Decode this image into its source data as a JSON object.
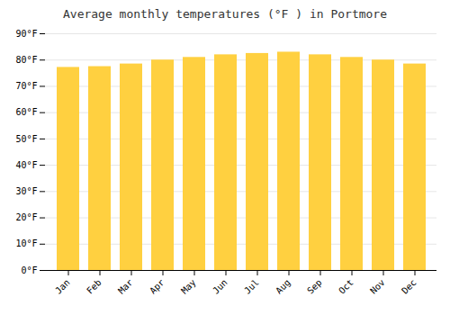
{
  "chart_data": {
    "type": "bar",
    "title": "Average monthly temperatures (°F ) in Portmore",
    "categories": [
      "Jan",
      "Feb",
      "Mar",
      "Apr",
      "May",
      "Jun",
      "Jul",
      "Aug",
      "Sep",
      "Oct",
      "Nov",
      "Dec"
    ],
    "values": [
      77.2,
      77.5,
      78.5,
      80.0,
      81.0,
      82.0,
      82.5,
      83.0,
      82.0,
      81.0,
      80.0,
      78.5
    ],
    "color": "#FFD040",
    "ylim": [
      0,
      90
    ],
    "yticks": [
      {
        "value": 0,
        "label": "0°F"
      },
      {
        "value": 10,
        "label": "10°F"
      },
      {
        "value": 20,
        "label": "20°F"
      },
      {
        "value": 30,
        "label": "30°F"
      },
      {
        "value": 40,
        "label": "40°F"
      },
      {
        "value": 50,
        "label": "50°F"
      },
      {
        "value": 60,
        "label": "60°F"
      },
      {
        "value": 70,
        "label": "70°F"
      },
      {
        "value": 80,
        "label": "80°F"
      },
      {
        "value": 90,
        "label": "90°F"
      }
    ],
    "grid": true
  }
}
